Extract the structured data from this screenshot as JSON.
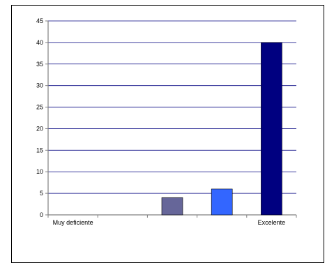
{
  "chart_data": {
    "type": "bar",
    "categories": [
      "Muy deficiente",
      "",
      "",
      "",
      "Excelente"
    ],
    "values": [
      0,
      0,
      4,
      6,
      40
    ],
    "colors": [
      "#666699",
      "#666699",
      "#666699",
      "#3366ff",
      "#000080"
    ],
    "ylim": [
      0,
      45
    ],
    "yticks": [
      0,
      5,
      10,
      15,
      20,
      25,
      30,
      35,
      40,
      45
    ],
    "grid": true,
    "title": "",
    "xlabel": "",
    "ylabel": ""
  }
}
